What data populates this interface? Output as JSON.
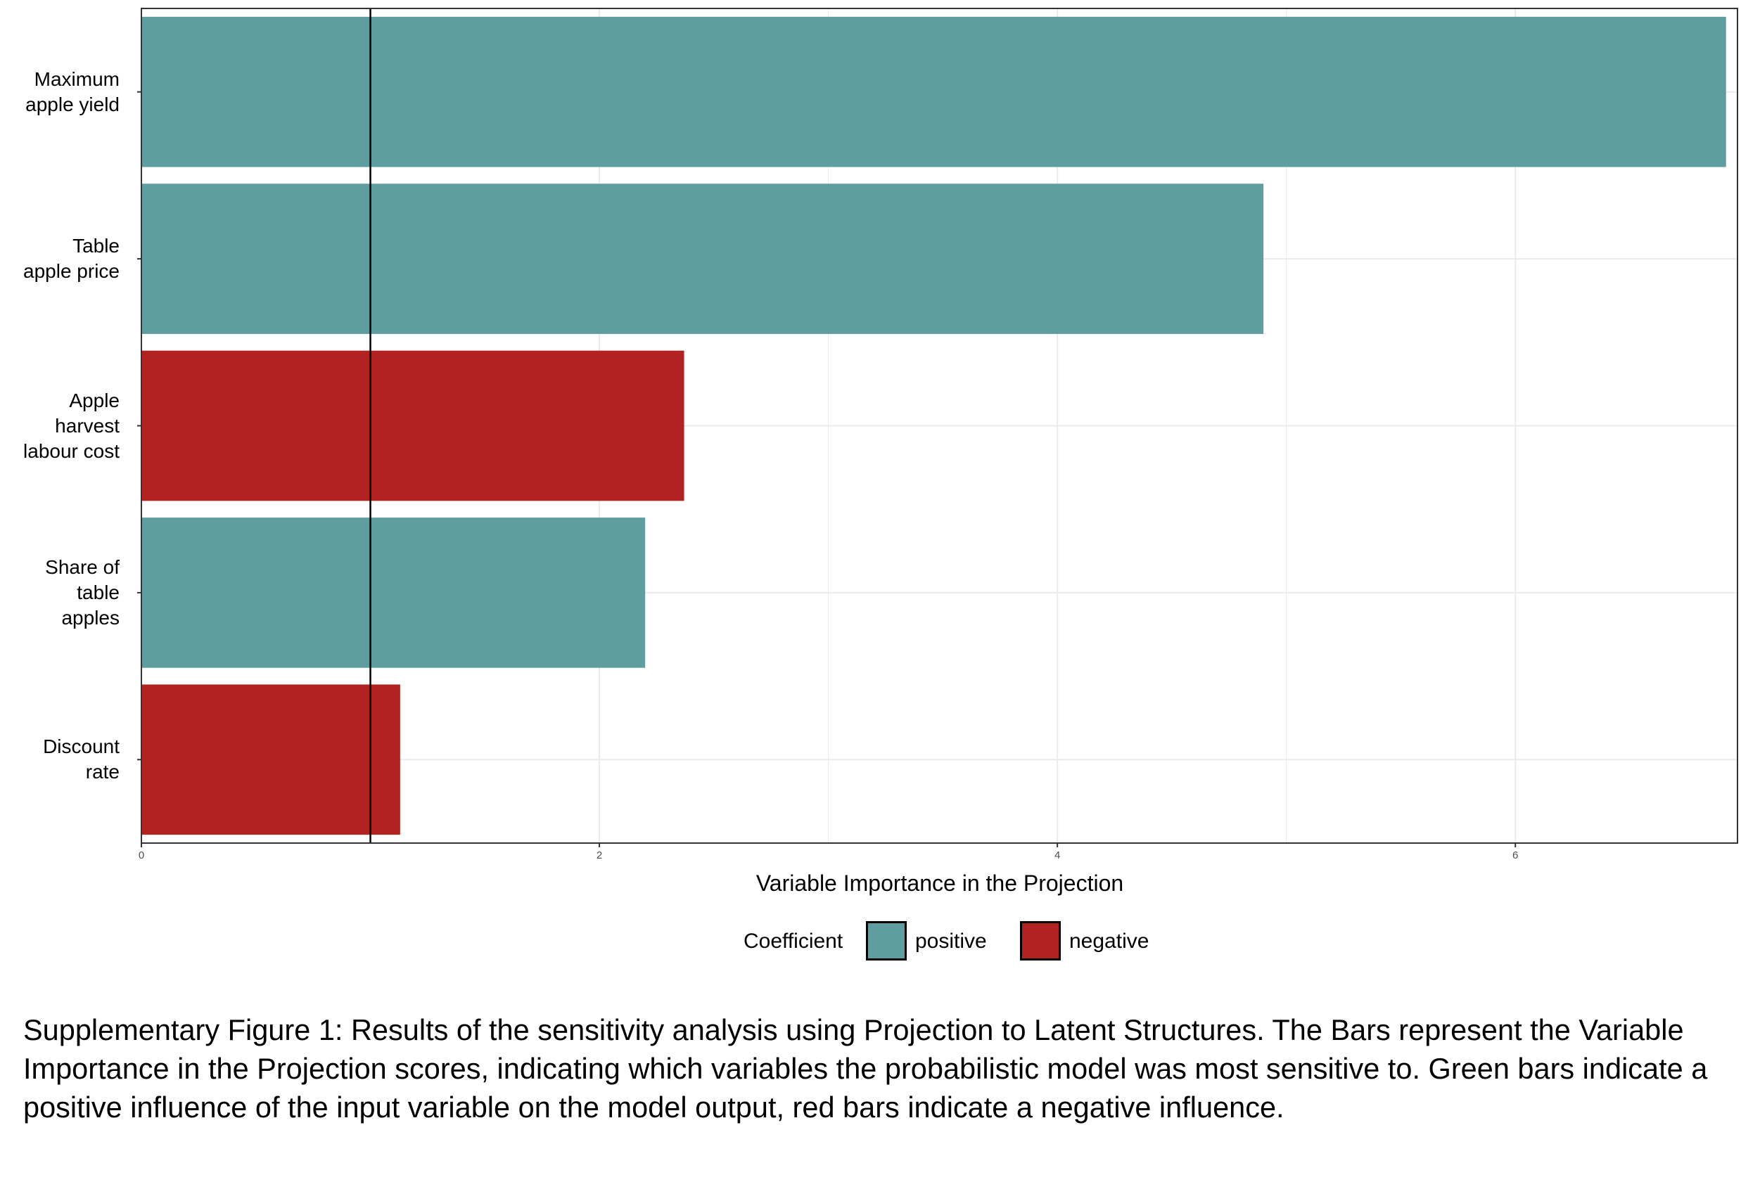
{
  "chart_data": {
    "type": "bar",
    "orientation": "horizontal",
    "categories": [
      "Maximum\napple yield",
      "Table\napple price",
      "Apple\nharvest\nlabour cost",
      "Share of\ntable\napples",
      "Discount\nrate"
    ],
    "values": [
      6.92,
      4.9,
      2.37,
      2.2,
      1.13
    ],
    "coefficient": [
      "positive",
      "positive",
      "negative",
      "positive",
      "negative"
    ],
    "x_ticks": [
      "0",
      "2",
      "4",
      "6"
    ],
    "xlim": [
      0,
      6.97
    ],
    "reference_line_x": 1,
    "xlabel": "Variable Importance in the Projection",
    "grid": true,
    "legend": {
      "title": "Coefficient",
      "position": "bottom",
      "items": [
        {
          "label": "positive",
          "color": "#5f9ea0"
        },
        {
          "label": "negative",
          "color": "#b22222"
        }
      ]
    }
  },
  "colors": {
    "positive": "#5f9ea0",
    "negative": "#b22222",
    "grid": "#ebebeb"
  },
  "caption": "Supplementary Figure 1: Results of the sensitivity analysis using Projection to Latent Structures. The Bars represent the Variable Importance in the Projection scores, indicating which variables the probabilistic model was most sensitive to. Green bars indicate a positive influence of the input variable on the model output, red bars indicate a negative influence."
}
